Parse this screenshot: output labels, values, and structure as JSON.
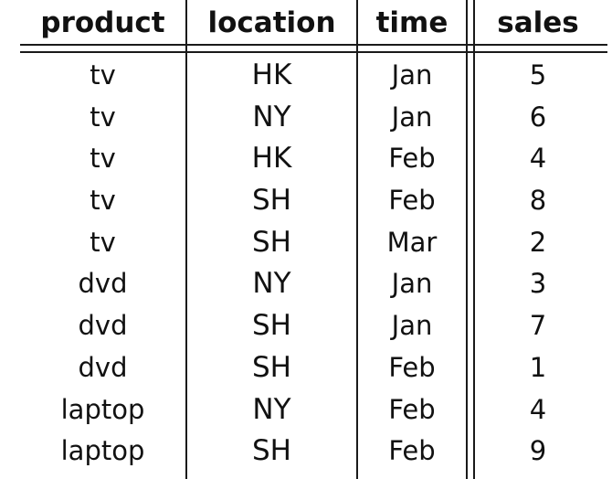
{
  "table": {
    "headers": [
      "product",
      "location",
      "time",
      "sales"
    ],
    "rows": [
      [
        "tv",
        "HK",
        "Jan",
        "5"
      ],
      [
        "tv",
        "NY",
        "Jan",
        "6"
      ],
      [
        "tv",
        "HK",
        "Feb",
        "4"
      ],
      [
        "tv",
        "SH",
        "Feb",
        "8"
      ],
      [
        "tv",
        "SH",
        "Mar",
        "2"
      ],
      [
        "dvd",
        "NY",
        "Jan",
        "3"
      ],
      [
        "dvd",
        "SH",
        "Jan",
        "7"
      ],
      [
        "dvd",
        "SH",
        "Feb",
        "1"
      ],
      [
        "laptop",
        "NY",
        "Feb",
        "4"
      ],
      [
        "laptop",
        "SH",
        "Feb",
        "9"
      ]
    ]
  }
}
